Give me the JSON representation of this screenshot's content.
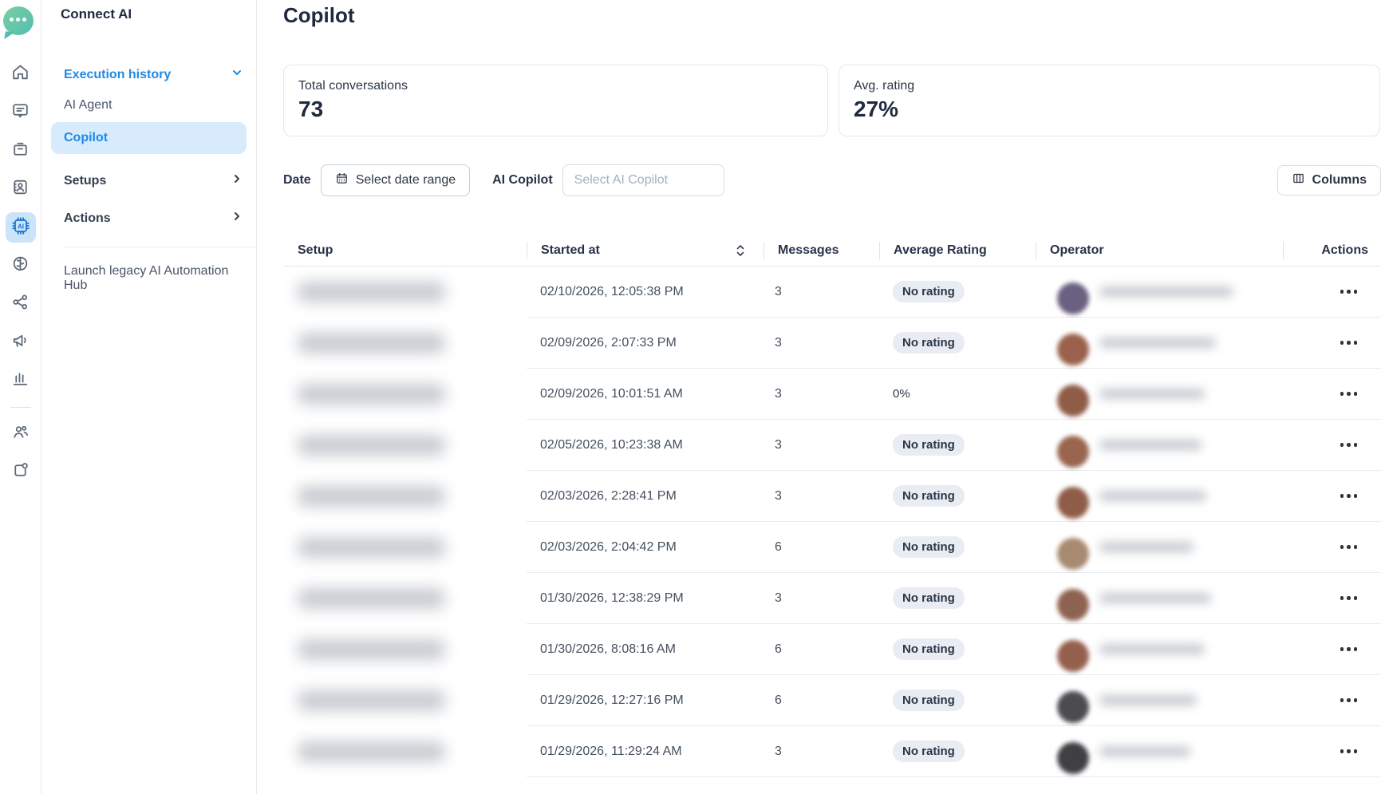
{
  "colors": {
    "accent_blue": "#2089e5",
    "selected_item_bg": "#d7ebfc",
    "rail_selected_bg": "#cbe4fa",
    "logo_teal_gradient": [
      "#79cfa0",
      "#53bdb2"
    ],
    "badge_bg": "#e9edf3",
    "heading_text": "#1f2940",
    "row_divider": "#e6edf5"
  },
  "rail": {
    "items": [
      {
        "icon": "home",
        "active": false
      },
      {
        "icon": "chat",
        "active": false
      },
      {
        "icon": "archive",
        "active": false
      },
      {
        "icon": "contacts",
        "active": false
      },
      {
        "icon": "ai-chip",
        "active": true
      },
      {
        "icon": "brain",
        "active": false
      },
      {
        "icon": "workflow-nodes",
        "active": false
      },
      {
        "icon": "megaphone",
        "active": false
      },
      {
        "icon": "bar-chart",
        "active": false
      },
      {
        "icon": "users",
        "active": false
      },
      {
        "icon": "external-box",
        "active": false
      }
    ]
  },
  "sidebar": {
    "title": "Connect AI",
    "items": {
      "execution_history": "Execution history",
      "ai_agent": "AI Agent",
      "copilot": "Copilot",
      "setups": "Setups",
      "actions": "Actions"
    },
    "selected_item": "Copilot",
    "footer_link": "Launch legacy AI Automation Hub"
  },
  "main": {
    "title": "Copilot",
    "stats": [
      {
        "label": "Total conversations",
        "value": "73"
      },
      {
        "label": "Avg. rating",
        "value": "27%"
      }
    ],
    "filters": {
      "date_label": "Date",
      "date_button": "Select date range",
      "copilot_label": "AI Copilot",
      "copilot_placeholder": "Select AI Copilot",
      "columns_button": "Columns"
    },
    "table": {
      "columns": [
        "Setup",
        "Started at",
        "Messages",
        "Average Rating",
        "Operator",
        "Actions"
      ],
      "sorted_column": "Started at",
      "setup_and_operator_cells": "redacted-blurred",
      "rows": [
        {
          "started_at": "02/10/2026, 12:05:38 PM",
          "messages": "3",
          "rating": "No rating",
          "rating_badge": true,
          "avatar_color": "#6a6080",
          "name_width": 168
        },
        {
          "started_at": "02/09/2026, 2:07:33 PM",
          "messages": "3",
          "rating": "No rating",
          "rating_badge": true,
          "avatar_color": "#9a614c",
          "name_width": 146
        },
        {
          "started_at": "02/09/2026, 10:01:51 AM",
          "messages": "3",
          "rating": "0%",
          "rating_badge": false,
          "avatar_color": "#8f5c48",
          "name_width": 132
        },
        {
          "started_at": "02/05/2026, 10:23:38 AM",
          "messages": "3",
          "rating": "No rating",
          "rating_badge": true,
          "avatar_color": "#99654f",
          "name_width": 128
        },
        {
          "started_at": "02/03/2026, 2:28:41 PM",
          "messages": "3",
          "rating": "No rating",
          "rating_badge": true,
          "avatar_color": "#8f5c48",
          "name_width": 134
        },
        {
          "started_at": "02/03/2026, 2:04:42 PM",
          "messages": "6",
          "rating": "No rating",
          "rating_badge": true,
          "avatar_color": "#a88a70",
          "name_width": 118
        },
        {
          "started_at": "01/30/2026, 12:38:29 PM",
          "messages": "3",
          "rating": "No rating",
          "rating_badge": true,
          "avatar_color": "#8e6251",
          "name_width": 140
        },
        {
          "started_at": "01/30/2026, 8:08:16 AM",
          "messages": "6",
          "rating": "No rating",
          "rating_badge": true,
          "avatar_color": "#955f4e",
          "name_width": 132
        },
        {
          "started_at": "01/29/2026, 12:27:16 PM",
          "messages": "6",
          "rating": "No rating",
          "rating_badge": true,
          "avatar_color": "#4b4b50",
          "name_width": 122
        },
        {
          "started_at": "01/29/2026, 11:29:24 AM",
          "messages": "3",
          "rating": "No rating",
          "rating_badge": true,
          "avatar_color": "#403f44",
          "name_width": 114
        }
      ]
    }
  }
}
